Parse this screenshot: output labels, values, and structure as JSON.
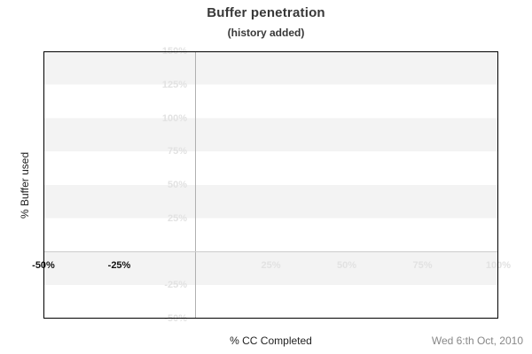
{
  "header": {
    "title": "Buffer penetration",
    "subtitle": "(history added)"
  },
  "footer": {
    "date": "Wed 6:th Oct, 2010"
  },
  "colors": {
    "band_gray": "#f3f3f3",
    "light_label": "#e2e2e2",
    "dark_label": "#111111",
    "zero_line_vertical": "#b0b0b0",
    "zero_line_horizontal": "#cccccc",
    "plot_border": "#000000",
    "title_text": "#383838",
    "axis_title_text": "#222222",
    "date_text": "#888888"
  },
  "chart_data": {
    "type": "line",
    "title": "Buffer penetration",
    "subtitle": "(history added)",
    "xlabel": "% CC Completed",
    "ylabel": "% Buffer used",
    "xlim": [
      -50,
      100
    ],
    "ylim": [
      -50,
      150
    ],
    "x_tick_step": 25,
    "y_tick_step": 25,
    "grid": "alternating horizontal bands every 25%, zero axes drawn as gray lines",
    "legend": "none",
    "series": [],
    "y_ticks": [
      {
        "value": 150,
        "label": "150%",
        "emphasis": false
      },
      {
        "value": 125,
        "label": "125%",
        "emphasis": false
      },
      {
        "value": 100,
        "label": "100%",
        "emphasis": false
      },
      {
        "value": 75,
        "label": "75%",
        "emphasis": false
      },
      {
        "value": 50,
        "label": "50%",
        "emphasis": false
      },
      {
        "value": 25,
        "label": "25%",
        "emphasis": false
      },
      {
        "value": -25,
        "label": "-25%",
        "emphasis": false
      },
      {
        "value": -50,
        "label": "-50%",
        "emphasis": false
      }
    ],
    "x_ticks": [
      {
        "value": -50,
        "label": "-50%",
        "emphasis": true
      },
      {
        "value": -25,
        "label": "-25%",
        "emphasis": true
      },
      {
        "value": 25,
        "label": "25%",
        "emphasis": false
      },
      {
        "value": 50,
        "label": "50%",
        "emphasis": false
      },
      {
        "value": 75,
        "label": "75%",
        "emphasis": false
      },
      {
        "value": 100,
        "label": "100%",
        "emphasis": false
      }
    ]
  }
}
